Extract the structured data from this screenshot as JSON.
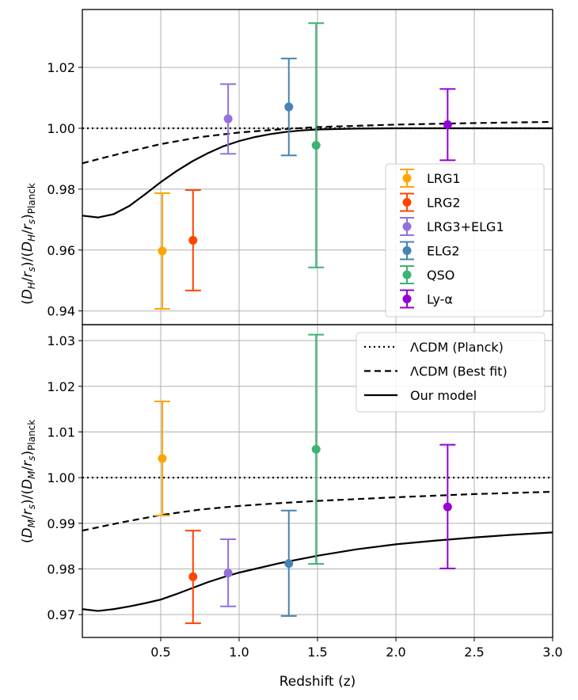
{
  "chart_data": [
    {
      "type": "scatter",
      "panel": "top",
      "ylabel": "(D_H/r_s)/(D_H/r_s)_Planck",
      "xlim": [
        0.0,
        3.0
      ],
      "ylim": [
        0.9355,
        1.039
      ],
      "yticks": [
        "0.94",
        "0.96",
        "0.98",
        "1.00",
        "1.02"
      ],
      "ytick_values": [
        0.94,
        0.96,
        0.98,
        1.0,
        1.02
      ],
      "grid": true,
      "series": [
        {
          "name": "LRG1",
          "color": "#FFA500",
          "x": 0.51,
          "y": 0.9597,
          "yerr_low": 0.9407,
          "yerr_high": 0.9787
        },
        {
          "name": "LRG2",
          "color": "#FF4500",
          "x": 0.706,
          "y": 0.9632,
          "yerr_low": 0.9467,
          "yerr_high": 0.9797
        },
        {
          "name": "LRG3+ELG1",
          "color": "#9370DB",
          "x": 0.93,
          "y": 1.0031,
          "yerr_low": 0.9916,
          "yerr_high": 1.0145
        },
        {
          "name": "ELG2",
          "color": "#4682B4",
          "x": 1.317,
          "y": 1.007,
          "yerr_low": 0.9911,
          "yerr_high": 1.0229
        },
        {
          "name": "QSO",
          "color": "#3CB371",
          "x": 1.491,
          "y": 0.9944,
          "yerr_low": 0.9543,
          "yerr_high": 1.0345
        },
        {
          "name": "Ly-α",
          "color": "#9400D3",
          "x": 2.33,
          "y": 1.0012,
          "yerr_low": 0.9895,
          "yerr_high": 1.0129
        }
      ],
      "curves": [
        {
          "style": "dotted",
          "x": [
            0.0,
            3.0
          ],
          "y": [
            1.0,
            1.0
          ]
        },
        {
          "style": "dashed",
          "x": [
            0.0,
            0.25,
            0.5,
            0.75,
            1.0,
            1.25,
            1.5,
            2.0,
            2.5,
            3.0
          ],
          "y": [
            0.9885,
            0.9918,
            0.9948,
            0.9971,
            0.9986,
            0.9996,
            1.0004,
            1.0012,
            1.0017,
            1.0021
          ]
        },
        {
          "style": "solid",
          "x": [
            0.0,
            0.1,
            0.2,
            0.3,
            0.4,
            0.5,
            0.6,
            0.7,
            0.8,
            0.9,
            1.0,
            1.1,
            1.2,
            1.3,
            1.4,
            1.5,
            1.75,
            2.0,
            2.5,
            3.0
          ],
          "y": [
            0.9713,
            0.9707,
            0.9718,
            0.9745,
            0.9783,
            0.9823,
            0.9859,
            0.9891,
            0.9918,
            0.9941,
            0.9958,
            0.9971,
            0.9981,
            0.9988,
            0.9993,
            0.9996,
            0.9999,
            1.0,
            1.0,
            1.0
          ]
        }
      ],
      "legend": {
        "placement": "lower-right",
        "entries": [
          "LRG1",
          "LRG2",
          "LRG3+ELG1",
          "ELG2",
          "QSO",
          "Ly-α"
        ]
      }
    },
    {
      "type": "scatter",
      "panel": "bottom",
      "ylabel": "(D_M/r_s)/(D_M/r_s)_Planck",
      "xlabel": "Redshift (z)",
      "xlim": [
        0.0,
        3.0
      ],
      "ylim": [
        0.965,
        1.0335
      ],
      "yticks": [
        "0.97",
        "0.98",
        "0.99",
        "1.00",
        "1.01",
        "1.02",
        "1.03"
      ],
      "ytick_values": [
        0.97,
        0.98,
        0.99,
        1.0,
        1.01,
        1.02,
        1.03
      ],
      "xticks": [
        "0.5",
        "1.0",
        "1.5",
        "2.0",
        "2.5",
        "3.0"
      ],
      "xtick_values": [
        0.5,
        1.0,
        1.5,
        2.0,
        2.5,
        3.0
      ],
      "grid": true,
      "series": [
        {
          "name": "LRG1",
          "color": "#FFA500",
          "x": 0.51,
          "y": 1.0042,
          "yerr_low": 0.9917,
          "yerr_high": 1.0167
        },
        {
          "name": "LRG2",
          "color": "#FF4500",
          "x": 0.706,
          "y": 0.9783,
          "yerr_low": 0.9681,
          "yerr_high": 0.9884
        },
        {
          "name": "LRG3+ELG1",
          "color": "#9370DB",
          "x": 0.93,
          "y": 0.9791,
          "yerr_low": 0.9718,
          "yerr_high": 0.9865
        },
        {
          "name": "ELG2",
          "color": "#4682B4",
          "x": 1.317,
          "y": 0.9812,
          "yerr_low": 0.9697,
          "yerr_high": 0.9928
        },
        {
          "name": "QSO",
          "color": "#3CB371",
          "x": 1.491,
          "y": 1.0062,
          "yerr_low": 0.9811,
          "yerr_high": 1.0313
        },
        {
          "name": "Ly-α",
          "color": "#9400D3",
          "x": 2.33,
          "y": 0.9936,
          "yerr_low": 0.9801,
          "yerr_high": 1.0072
        }
      ],
      "curves": [
        {
          "name": "ΛCDM (Planck)",
          "style": "dotted",
          "x": [
            0.0,
            3.0
          ],
          "y": [
            1.0,
            1.0
          ]
        },
        {
          "name": "ΛCDM (Best fit)",
          "style": "dashed",
          "x": [
            0.0,
            0.25,
            0.5,
            0.75,
            1.0,
            1.25,
            1.5,
            2.0,
            2.5,
            3.0
          ],
          "y": [
            0.9884,
            0.9902,
            0.9918,
            0.993,
            0.9938,
            0.9944,
            0.9949,
            0.9957,
            0.9964,
            0.9969
          ]
        },
        {
          "name": "Our model",
          "style": "solid",
          "x": [
            0.0,
            0.1,
            0.2,
            0.3,
            0.4,
            0.5,
            0.6,
            0.7,
            0.8,
            0.9,
            1.0,
            1.25,
            1.5,
            1.75,
            2.0,
            2.25,
            2.5,
            2.75,
            3.0
          ],
          "y": [
            0.9712,
            0.9708,
            0.9712,
            0.9718,
            0.9725,
            0.9733,
            0.9745,
            0.9758,
            0.9771,
            0.9782,
            0.9792,
            0.9812,
            0.9829,
            0.9843,
            0.9854,
            0.9862,
            0.9869,
            0.9875,
            0.988
          ]
        }
      ],
      "legend": {
        "placement": "upper-right",
        "entries": [
          "ΛCDM (Planck)",
          "ΛCDM (Best fit)",
          "Our model"
        ]
      }
    }
  ]
}
